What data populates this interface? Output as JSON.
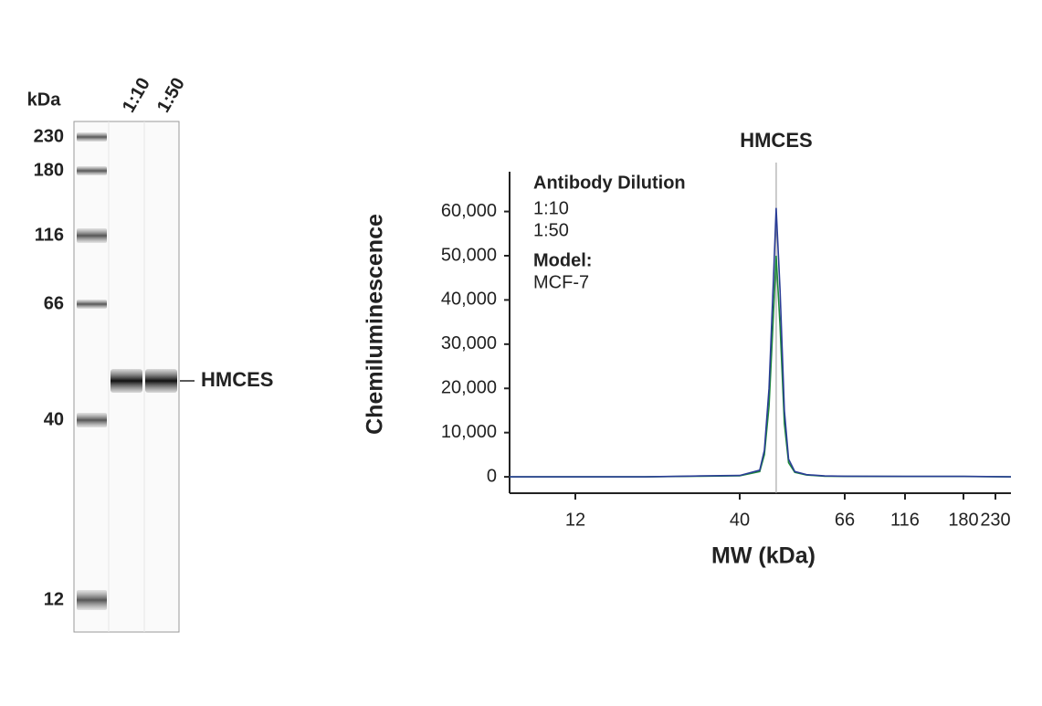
{
  "chart_data": [
    {
      "type": "gel",
      "unit_label": "kDa",
      "ladder": [
        230,
        180,
        116,
        66,
        40,
        12
      ],
      "lanes": [
        "1:10",
        "1:50"
      ],
      "band_label": "HMCES"
    },
    {
      "type": "line",
      "y_label": "Chemiluminescence",
      "x_label": "MW (kDa)",
      "legend_title": "Antibody Dilution",
      "model_label": "Model:",
      "model": "MCF-7",
      "annotation": {
        "label": "HMCES",
        "x": 47.6
      },
      "xscale": "calibrated-log",
      "xlim": [
        7.4,
        260
      ],
      "xticks": [
        12,
        40,
        66,
        116,
        180,
        230
      ],
      "ylim": [
        -3700,
        69000
      ],
      "yticks": [
        {
          "value": 0,
          "label": "0"
        },
        {
          "value": 10000,
          "label": "10,000"
        },
        {
          "value": 20000,
          "label": "20,000"
        },
        {
          "value": 30000,
          "label": "30,000"
        },
        {
          "value": 40000,
          "label": "40,000"
        },
        {
          "value": 50000,
          "label": "50,000"
        },
        {
          "value": 60000,
          "label": "60,000"
        }
      ],
      "x": [
        7.4,
        12,
        20,
        30,
        40,
        44,
        45,
        46,
        47,
        47.6,
        48.5,
        49.5,
        50.5,
        52,
        55,
        60,
        66,
        116,
        180,
        260
      ],
      "series": [
        {
          "name": "1:10",
          "color": "#2a3d96",
          "values": [
            0,
            0,
            0,
            200,
            300,
            1500,
            6000,
            20000,
            45000,
            60800,
            42000,
            15000,
            4000,
            1200,
            500,
            200,
            150,
            100,
            100,
            0
          ]
        },
        {
          "name": "1:50",
          "color": "#1e8a3a",
          "values": [
            0,
            0,
            0,
            150,
            250,
            1200,
            5000,
            16000,
            37000,
            50000,
            34000,
            12000,
            3200,
            1000,
            400,
            150,
            100,
            80,
            80,
            0
          ]
        }
      ]
    }
  ]
}
